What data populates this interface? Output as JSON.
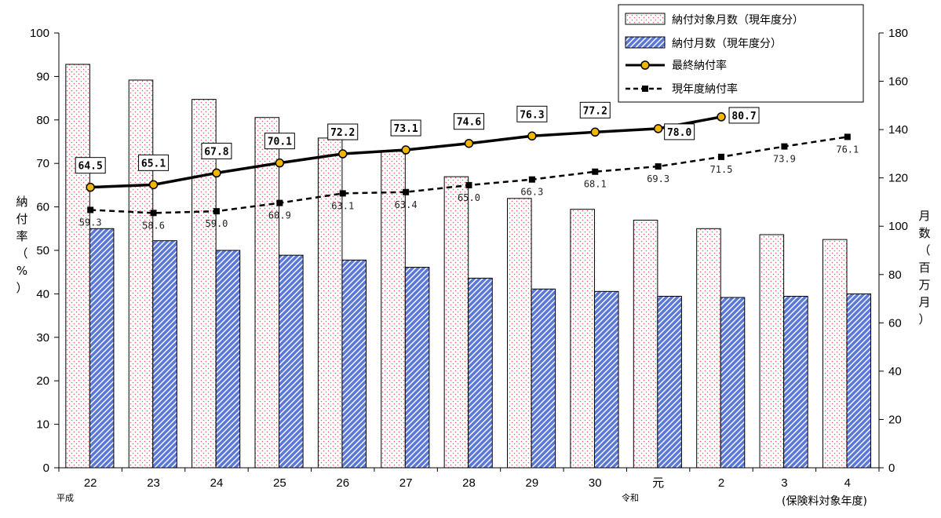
{
  "chart_data": {
    "type": "bar",
    "categories": [
      "22",
      "23",
      "24",
      "25",
      "26",
      "27",
      "28",
      "29",
      "30",
      "元",
      "2",
      "3",
      "4"
    ],
    "era_labels": {
      "heisei": "平成",
      "reiwa": "令和"
    },
    "x_note": "(保険料対象年度)",
    "y_left": {
      "label": "納付率（%）",
      "ticks": [
        0,
        10,
        20,
        30,
        40,
        50,
        60,
        70,
        80,
        90,
        100
      ],
      "ylim": [
        0,
        100
      ]
    },
    "y_right": {
      "label": "月数（百万月）",
      "ticks": [
        0,
        20,
        40,
        60,
        80,
        100,
        120,
        140,
        160,
        180
      ],
      "ylim": [
        0,
        180
      ]
    },
    "series": [
      {
        "name": "納付対象月数（現年度分）",
        "type": "bar",
        "axis": "right",
        "values": [
          167,
          160.5,
          152.5,
          145,
          136.5,
          131,
          120.5,
          111.5,
          107,
          102.5,
          99,
          96.5,
          94.5
        ]
      },
      {
        "name": "納付月数（現年度分）",
        "type": "bar",
        "axis": "right",
        "values": [
          99,
          94,
          90,
          88,
          86,
          83,
          78.5,
          74,
          73,
          71,
          70.5,
          71,
          72
        ]
      },
      {
        "name": "最終納付率",
        "type": "line",
        "axis": "left",
        "values": [
          64.5,
          65.1,
          67.8,
          70.1,
          72.2,
          73.1,
          74.6,
          76.3,
          77.2,
          78.0,
          80.7,
          null,
          null
        ],
        "labels": [
          "64.5",
          "65.1",
          "67.8",
          "70.1",
          "72.2",
          "73.1",
          "74.6",
          "76.3",
          "77.2",
          "78.0",
          "80.7",
          "",
          ""
        ]
      },
      {
        "name": "現年度納付率",
        "type": "line",
        "axis": "left",
        "values": [
          59.3,
          58.6,
          59.0,
          60.9,
          63.1,
          63.4,
          65.0,
          66.3,
          68.1,
          69.3,
          71.5,
          73.9,
          76.1
        ],
        "labels": [
          "59.3",
          "58.6",
          "59.0",
          "60.9",
          "63.1",
          "63.4",
          "65.0",
          "66.3",
          "68.1",
          "69.3",
          "71.5",
          "73.9",
          "76.1"
        ]
      }
    ],
    "legend_position": "top-right",
    "grid": false
  },
  "colors": {
    "bar1_fill": "#ffffff",
    "bar1_dots": "#e8555a",
    "bar2_fill": "#5b78d8",
    "bar2_stripe": "#ffffff",
    "line_final": "#000000",
    "marker_final": "#f2b600",
    "line_current": "#000000"
  }
}
